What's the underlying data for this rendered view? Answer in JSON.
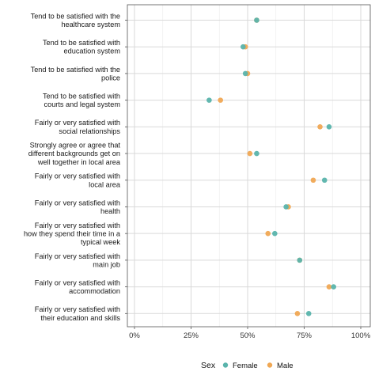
{
  "chart_data": {
    "type": "scatter",
    "categories": [
      "Tend to be satisfied with the\nhealthcare system",
      "Tend to be satisfied with\neducation system",
      "Tend to be satisfied with the\npolice",
      "Tend to be satisfied with\ncourts and legal system",
      "Fairly or very satisfied with\nsocial relationships",
      "Strongly agree or agree that\ndifferent backgrounds get on\nwell together in local area",
      "Fairly or very satisfied with\nlocal area",
      "Fairly or very satisfied with\nhealth",
      "Fairly or very satisfied with\nhow they spend their time in a\ntypical week",
      "Fairly or very satisfied with\nmain job",
      "Fairly or very satisfied with\naccommodation",
      "Fairly or very satisfied with\ntheir education and skills"
    ],
    "series": [
      {
        "name": "Female",
        "color": "#5ab4ac",
        "values": [
          54,
          48,
          49,
          33,
          86,
          54,
          84,
          67,
          62,
          73,
          88,
          77
        ]
      },
      {
        "name": "Male",
        "color": "#f0a854",
        "values": [
          54,
          49,
          50,
          38,
          82,
          51,
          79,
          68,
          59,
          73,
          86,
          72
        ]
      }
    ],
    "xlim": [
      0,
      100
    ],
    "x_ticks": [
      "0%",
      "25%",
      "50%",
      "75%",
      "100%"
    ],
    "x_tick_values": [
      0,
      25,
      50,
      75,
      100
    ],
    "grid": true,
    "legend": {
      "title": "Sex",
      "placement": "bottom",
      "entries": [
        "Female",
        "Male"
      ]
    }
  }
}
